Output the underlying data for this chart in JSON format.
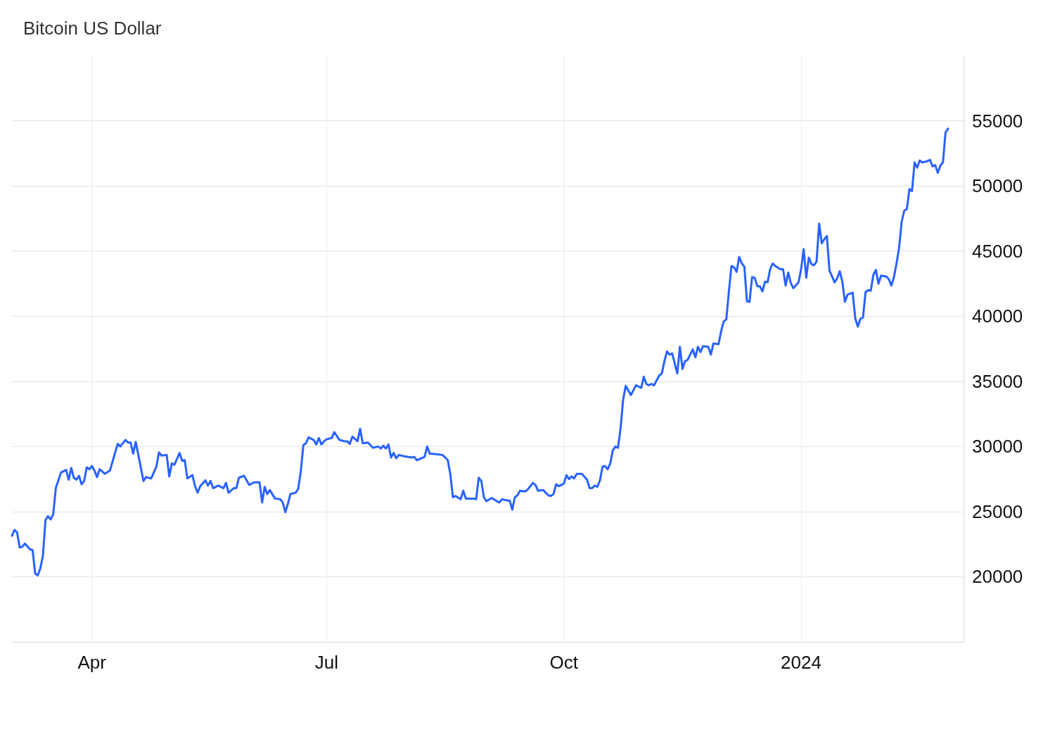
{
  "chart_data": {
    "type": "line",
    "title": "Bitcoin US Dollar",
    "x": [
      "2023-03-01",
      "2023-03-02",
      "2023-03-03",
      "2023-03-04",
      "2023-03-05",
      "2023-03-06",
      "2023-03-08",
      "2023-03-09",
      "2023-03-10",
      "2023-03-11",
      "2023-03-12",
      "2023-03-13",
      "2023-03-14",
      "2023-03-15",
      "2023-03-16",
      "2023-03-17",
      "2023-03-18",
      "2023-03-20",
      "2023-03-22",
      "2023-03-23",
      "2023-03-24",
      "2023-03-25",
      "2023-03-26",
      "2023-03-27",
      "2023-03-28",
      "2023-03-29",
      "2023-03-30",
      "2023-03-31",
      "2023-04-01",
      "2023-04-02",
      "2023-04-03",
      "2023-04-04",
      "2023-04-06",
      "2023-04-08",
      "2023-04-11",
      "2023-04-12",
      "2023-04-14",
      "2023-04-15",
      "2023-04-16",
      "2023-04-17",
      "2023-04-18",
      "2023-04-21",
      "2023-04-22",
      "2023-04-24",
      "2023-04-26",
      "2023-04-27",
      "2023-04-28",
      "2023-04-30",
      "2023-05-01",
      "2023-05-02",
      "2023-05-03",
      "2023-05-05",
      "2023-05-06",
      "2023-05-07",
      "2023-05-08",
      "2023-05-10",
      "2023-05-11",
      "2023-05-12",
      "2023-05-13",
      "2023-05-15",
      "2023-05-16",
      "2023-05-17",
      "2023-05-18",
      "2023-05-20",
      "2023-05-22",
      "2023-05-23",
      "2023-05-24",
      "2023-05-26",
      "2023-05-27",
      "2023-05-28",
      "2023-05-30",
      "2023-06-01",
      "2023-06-03",
      "2023-06-05",
      "2023-06-06",
      "2023-06-07",
      "2023-06-08",
      "2023-06-09",
      "2023-06-11",
      "2023-06-13",
      "2023-06-14",
      "2023-06-15",
      "2023-06-16",
      "2023-06-17",
      "2023-06-19",
      "2023-06-20",
      "2023-06-21",
      "2023-06-22",
      "2023-06-23",
      "2023-06-24",
      "2023-06-26",
      "2023-06-27",
      "2023-06-28",
      "2023-06-29",
      "2023-06-30",
      "2023-07-01",
      "2023-07-03",
      "2023-07-04",
      "2023-07-06",
      "2023-07-08",
      "2023-07-09",
      "2023-07-10",
      "2023-07-11",
      "2023-07-13",
      "2023-07-14",
      "2023-07-15",
      "2023-07-17",
      "2023-07-19",
      "2023-07-21",
      "2023-07-22",
      "2023-07-23",
      "2023-07-24",
      "2023-07-25",
      "2023-07-26",
      "2023-07-27",
      "2023-07-28",
      "2023-07-29",
      "2023-07-31",
      "2023-08-03",
      "2023-08-04",
      "2023-08-05",
      "2023-08-08",
      "2023-08-09",
      "2023-08-10",
      "2023-08-13",
      "2023-08-15",
      "2023-08-17",
      "2023-08-18",
      "2023-08-19",
      "2023-08-20",
      "2023-08-22",
      "2023-08-23",
      "2023-08-24",
      "2023-08-27",
      "2023-08-28",
      "2023-08-29",
      "2023-08-30",
      "2023-08-31",
      "2023-09-01",
      "2023-09-03",
      "2023-09-05",
      "2023-09-06",
      "2023-09-07",
      "2023-09-09",
      "2023-09-10",
      "2023-09-11",
      "2023-09-12",
      "2023-09-13",
      "2023-09-14",
      "2023-09-16",
      "2023-09-17",
      "2023-09-19",
      "2023-09-20",
      "2023-09-21",
      "2023-09-23",
      "2023-09-25",
      "2023-09-26",
      "2023-09-27",
      "2023-09-28",
      "2023-09-29",
      "2023-10-01",
      "2023-10-02",
      "2023-10-03",
      "2023-10-04",
      "2023-10-05",
      "2023-10-06",
      "2023-10-08",
      "2023-10-10",
      "2023-10-11",
      "2023-10-12",
      "2023-10-13",
      "2023-10-14",
      "2023-10-15",
      "2023-10-16",
      "2023-10-17",
      "2023-10-18",
      "2023-10-19",
      "2023-10-20",
      "2023-10-21",
      "2023-10-22",
      "2023-10-23",
      "2023-10-24",
      "2023-10-25",
      "2023-10-27",
      "2023-10-29",
      "2023-10-31",
      "2023-11-01",
      "2023-11-02",
      "2023-11-03",
      "2023-11-04",
      "2023-11-05",
      "2023-11-07",
      "2023-11-08",
      "2023-11-09",
      "2023-11-10",
      "2023-11-11",
      "2023-11-12",
      "2023-11-14",
      "2023-11-15",
      "2023-11-16",
      "2023-11-17",
      "2023-11-18",
      "2023-11-20",
      "2023-11-21",
      "2023-11-22",
      "2023-11-23",
      "2023-11-24",
      "2023-11-26",
      "2023-11-27",
      "2023-11-28",
      "2023-11-30",
      "2023-12-01",
      "2023-12-02",
      "2023-12-03",
      "2023-12-04",
      "2023-12-05",
      "2023-12-06",
      "2023-12-07",
      "2023-12-08",
      "2023-12-09",
      "2023-12-10",
      "2023-12-11",
      "2023-12-12",
      "2023-12-13",
      "2023-12-14",
      "2023-12-15",
      "2023-12-16",
      "2023-12-17",
      "2023-12-18",
      "2023-12-19",
      "2023-12-20",
      "2023-12-21",
      "2023-12-22",
      "2023-12-24",
      "2023-12-25",
      "2023-12-26",
      "2023-12-27",
      "2023-12-28",
      "2023-12-29",
      "2023-12-31",
      "2024-01-01",
      "2024-01-02",
      "2024-01-03",
      "2024-01-04",
      "2024-01-05",
      "2024-01-06",
      "2024-01-07",
      "2024-01-08",
      "2024-01-09",
      "2024-01-10",
      "2024-01-11",
      "2024-01-12",
      "2024-01-14",
      "2024-01-15",
      "2024-01-16",
      "2024-01-17",
      "2024-01-18",
      "2024-01-19",
      "2024-01-21",
      "2024-01-22",
      "2024-01-23",
      "2024-01-24",
      "2024-01-25",
      "2024-01-26",
      "2024-01-27",
      "2024-01-28",
      "2024-01-29",
      "2024-01-30",
      "2024-01-31",
      "2024-02-01",
      "2024-02-03",
      "2024-02-04",
      "2024-02-05",
      "2024-02-06",
      "2024-02-07",
      "2024-02-08",
      "2024-02-09",
      "2024-02-10",
      "2024-02-11",
      "2024-02-12",
      "2024-02-13",
      "2024-02-14",
      "2024-02-15",
      "2024-02-16",
      "2024-02-17",
      "2024-02-19",
      "2024-02-20",
      "2024-02-21",
      "2024-02-22",
      "2024-02-23",
      "2024-02-24",
      "2024-02-25",
      "2024-02-26",
      "2024-02-27"
    ],
    "series": [
      {
        "color": "#2962ff",
        "values": [
          23150,
          23600,
          23400,
          22250,
          22300,
          22550,
          22100,
          22050,
          20250,
          20100,
          20650,
          21600,
          24350,
          24650,
          24400,
          24800,
          26800,
          28000,
          28200,
          27450,
          28350,
          27600,
          27450,
          27750,
          27100,
          27350,
          28400,
          28250,
          28500,
          28150,
          27650,
          28250,
          27900,
          28150,
          30200,
          30000,
          30500,
          30300,
          30300,
          29450,
          30350,
          27350,
          27650,
          27550,
          28450,
          29550,
          29300,
          29350,
          27700,
          28700,
          28600,
          29500,
          28900,
          28950,
          27550,
          27800,
          26950,
          26450,
          26950,
          27400,
          27000,
          27350,
          26800,
          27000,
          26800,
          27200,
          26450,
          26800,
          26800,
          27600,
          27750,
          27050,
          27250,
          27250,
          25700,
          26900,
          26350,
          26650,
          26000,
          25950,
          25700,
          24950,
          25600,
          26350,
          26450,
          26750,
          28100,
          30100,
          30250,
          30700,
          30500,
          30150,
          30650,
          30150,
          30400,
          30550,
          30650,
          31100,
          30500,
          30400,
          30400,
          30200,
          30750,
          30400,
          31350,
          30250,
          30300,
          29900,
          30000,
          29850,
          30050,
          29850,
          30150,
          29150,
          29500,
          29100,
          29350,
          29250,
          29150,
          29200,
          28950,
          29200,
          30000,
          29450,
          29400,
          29350,
          28950,
          27850,
          26100,
          26200,
          25950,
          26600,
          26000,
          26000,
          25950,
          27600,
          27350,
          26100,
          25800,
          26050,
          25800,
          25700,
          25950,
          25850,
          25850,
          25150,
          26100,
          26250,
          26600,
          26550,
          26700,
          27200,
          27050,
          26600,
          26650,
          26250,
          26200,
          26350,
          27100,
          26950,
          27150,
          27800,
          27500,
          27700,
          27550,
          27900,
          27900,
          27450,
          26800,
          26800,
          27000,
          26900,
          27400,
          28450,
          28500,
          28250,
          28700,
          29700,
          30000,
          29900,
          31400,
          33600,
          34650,
          33950,
          34700,
          34500,
          35350,
          34800,
          34700,
          34800,
          34700,
          35450,
          35600,
          36550,
          37300,
          37050,
          37150,
          35600,
          37650,
          35950,
          36550,
          36650,
          37450,
          36850,
          37650,
          37250,
          37700,
          37650,
          37050,
          37900,
          37850,
          38850,
          39600,
          39750,
          41900,
          43850,
          43750,
          43400,
          44550,
          44050,
          43800,
          41150,
          41100,
          43000,
          42950,
          42300,
          42300,
          41900,
          42650,
          42600,
          43600,
          44050,
          43850,
          43600,
          43600,
          42350,
          43350,
          42550,
          42150,
          42600,
          43600,
          45150,
          42950,
          44500,
          44000,
          43900,
          44200,
          47100,
          45600,
          45900,
          46150,
          43500,
          42600,
          42900,
          43450,
          42650,
          41100,
          41650,
          41800,
          39850,
          39200,
          39800,
          39900,
          41850,
          42000,
          41950,
          43150,
          43550,
          42500,
          43100,
          43050,
          42850,
          42350,
          43000,
          44050,
          45250,
          47250,
          48100,
          48200,
          49750,
          49600,
          51800,
          51400,
          51950,
          51800,
          51900,
          52000,
          51500,
          51600,
          51000,
          51550,
          51800,
          54100,
          54400
        ]
      }
    ],
    "xlim": [
      "2023-03-01",
      "2024-03-04"
    ],
    "xticks": [
      {
        "value": "2023-04-01",
        "label": "Apr"
      },
      {
        "value": "2023-07-01",
        "label": "Jul"
      },
      {
        "value": "2023-10-01",
        "label": "Oct"
      },
      {
        "value": "2024-01-01",
        "label": "2024"
      }
    ],
    "ylim": [
      15000,
      60000
    ],
    "yticks": [
      20000,
      25000,
      30000,
      35000,
      40000,
      45000,
      50000,
      55000
    ],
    "grid": true,
    "marker": "none",
    "line_style": "solid"
  }
}
